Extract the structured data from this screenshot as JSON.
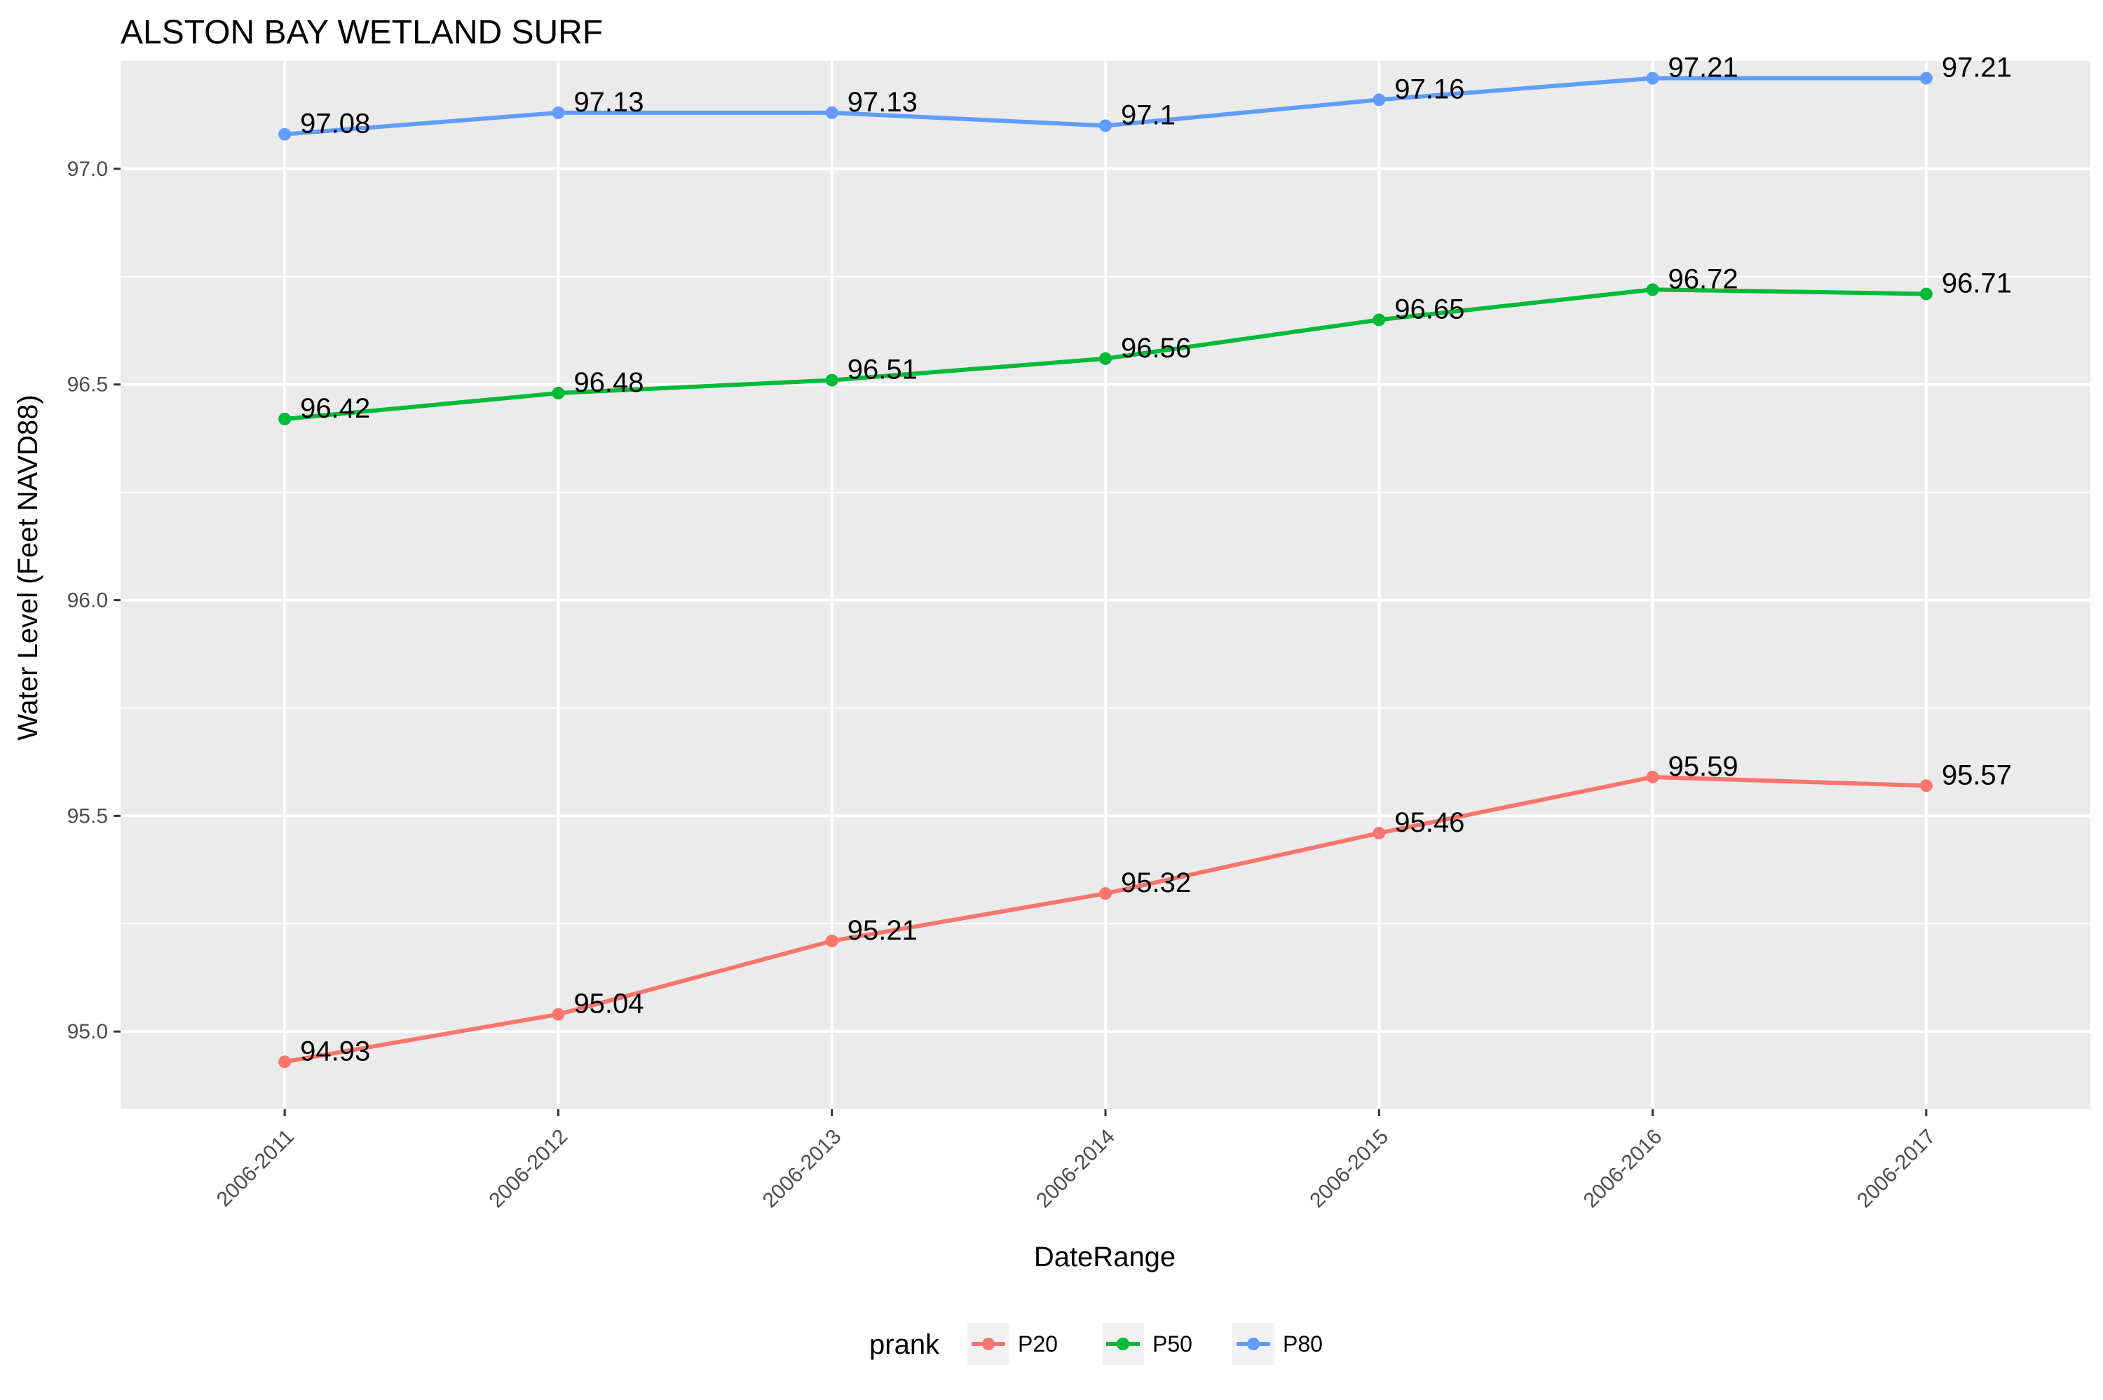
{
  "chart_data": {
    "type": "line",
    "title": "ALSTON BAY WETLAND SURF",
    "xlabel": "DateRange",
    "ylabel": "Water Level (Feet NAVD88)",
    "categories": [
      "2006-2011",
      "2006-2012",
      "2006-2013",
      "2006-2014",
      "2006-2015",
      "2006-2016",
      "2006-2017"
    ],
    "ylim": [
      94.82,
      97.25
    ],
    "yticks": [
      95.0,
      95.5,
      96.0,
      96.5,
      97.0
    ],
    "ytick_labels": [
      "95.0",
      "95.5",
      "96.0",
      "96.5",
      "97.0"
    ],
    "grid": true,
    "legend": {
      "title": "prank",
      "position": "bottom"
    },
    "series": [
      {
        "name": "P20",
        "color": "#F8766D",
        "values": [
          94.93,
          95.04,
          95.21,
          95.32,
          95.46,
          95.59,
          95.57
        ],
        "labels": [
          "94.93",
          "95.04",
          "95.21",
          "95.32",
          "95.46",
          "95.59",
          "95.57"
        ]
      },
      {
        "name": "P50",
        "color": "#00BA38",
        "values": [
          96.42,
          96.48,
          96.51,
          96.56,
          96.65,
          96.72,
          96.71
        ],
        "labels": [
          "96.42",
          "96.48",
          "96.51",
          "96.56",
          "96.65",
          "96.72",
          "96.71"
        ]
      },
      {
        "name": "P80",
        "color": "#619CFF",
        "values": [
          97.08,
          97.13,
          97.13,
          97.1,
          97.16,
          97.21,
          97.21
        ],
        "labels": [
          "97.08",
          "97.13",
          "97.13",
          "97.1",
          "97.16",
          "97.21",
          "97.21"
        ]
      }
    ]
  }
}
